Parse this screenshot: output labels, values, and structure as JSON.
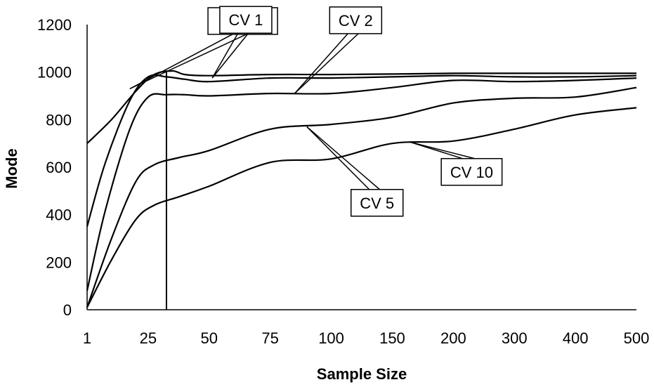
{
  "chart_data": {
    "type": "line",
    "title": "",
    "xlabel": "Sample Size",
    "ylabel": "Mode",
    "categories": [
      "1",
      "25",
      "50",
      "75",
      "100",
      "150",
      "200",
      "300",
      "400",
      "500"
    ],
    "ylim": [
      0,
      1200
    ],
    "yticks": [
      0,
      200,
      400,
      600,
      800,
      1000,
      1200
    ],
    "grid": false,
    "legend": "none",
    "vertical_marker": {
      "x_index": 1.3
    },
    "series": [
      {
        "name": "CV 0.5",
        "points": [
          [
            0,
            700
          ],
          [
            0.4,
            800
          ],
          [
            0.8,
            920
          ],
          [
            1.1,
            990
          ],
          [
            1.4,
            1005
          ],
          [
            1.6,
            990
          ],
          [
            2,
            985
          ],
          [
            3,
            990
          ],
          [
            4,
            990
          ],
          [
            5,
            992
          ],
          [
            6,
            995
          ],
          [
            7,
            995
          ],
          [
            8,
            995
          ],
          [
            9,
            995
          ]
        ]
      },
      {
        "name": "CV 1",
        "points": [
          [
            0,
            350
          ],
          [
            0.3,
            620
          ],
          [
            0.7,
            880
          ],
          [
            1,
            980
          ],
          [
            1.3,
            980
          ],
          [
            1.6,
            970
          ],
          [
            2,
            960
          ],
          [
            3,
            975
          ],
          [
            4,
            975
          ],
          [
            5,
            980
          ],
          [
            6,
            985
          ],
          [
            7,
            980
          ],
          [
            8,
            980
          ],
          [
            9,
            985
          ]
        ]
      },
      {
        "name": "CV 2",
        "points": [
          [
            0,
            80
          ],
          [
            0.3,
            420
          ],
          [
            0.7,
            760
          ],
          [
            1,
            895
          ],
          [
            1.3,
            905
          ],
          [
            1.6,
            905
          ],
          [
            2,
            900
          ],
          [
            3,
            910
          ],
          [
            4,
            910
          ],
          [
            5,
            935
          ],
          [
            6,
            965
          ],
          [
            7,
            960
          ],
          [
            8,
            965
          ],
          [
            9,
            975
          ]
        ]
      },
      {
        "name": "CV 5",
        "points": [
          [
            0,
            10
          ],
          [
            0.4,
            300
          ],
          [
            0.8,
            540
          ],
          [
            1.1,
            610
          ],
          [
            1.5,
            640
          ],
          [
            2,
            670
          ],
          [
            3,
            760
          ],
          [
            4,
            780
          ],
          [
            5,
            810
          ],
          [
            6,
            870
          ],
          [
            7,
            890
          ],
          [
            8,
            895
          ],
          [
            9,
            935
          ]
        ]
      },
      {
        "name": "CV 10",
        "points": [
          [
            0,
            10
          ],
          [
            0.4,
            210
          ],
          [
            0.8,
            380
          ],
          [
            1.1,
            440
          ],
          [
            1.5,
            475
          ],
          [
            2,
            520
          ],
          [
            3,
            620
          ],
          [
            4,
            635
          ],
          [
            5,
            700
          ],
          [
            6,
            710
          ],
          [
            7,
            760
          ],
          [
            8,
            820
          ],
          [
            9,
            850
          ]
        ]
      }
    ],
    "annotations": [
      {
        "text": "CV 0.5",
        "series": 0,
        "anchor": [
          0.7,
          930
        ],
        "box_center": [
          2.55,
          1215
        ]
      },
      {
        "text": "CV 1",
        "series": 1,
        "anchor": [
          2.05,
          975
        ],
        "box_center": [
          2.6,
          1220
        ]
      },
      {
        "text": "CV 2",
        "series": 2,
        "anchor": [
          3.4,
          910
        ],
        "box_center": [
          4.4,
          1218
        ]
      },
      {
        "text": "CV 5",
        "series": 3,
        "anchor": [
          3.6,
          770
        ],
        "box_center": [
          4.75,
          450
        ]
      },
      {
        "text": "CV 10",
        "series": 4,
        "anchor": [
          5.3,
          705
        ],
        "box_center": [
          6.3,
          580
        ]
      }
    ]
  }
}
